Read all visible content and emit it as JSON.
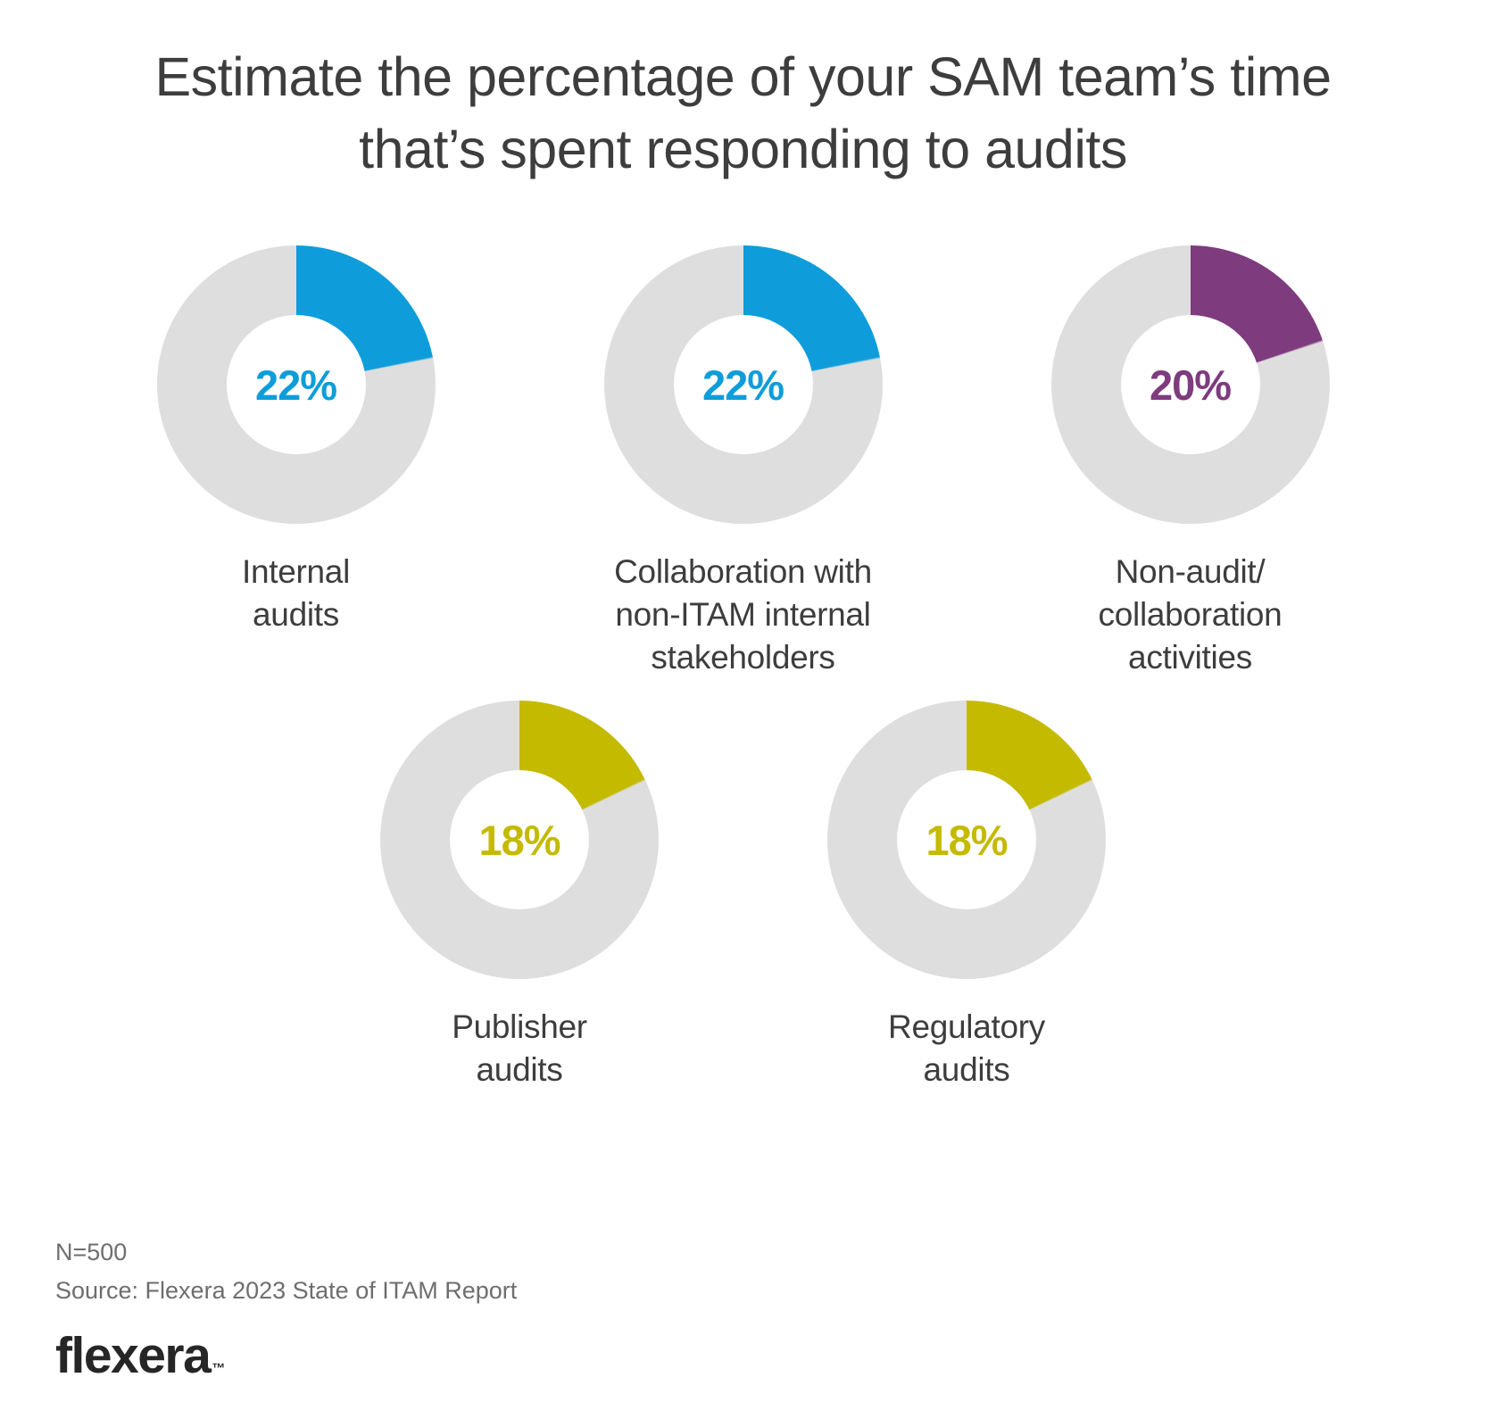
{
  "title": {
    "line1": "Estimate the percentage of your SAM team’s time",
    "line2": "that’s spent responding to audits"
  },
  "chart_data": {
    "type": "pie",
    "subtype": "donut-multiples",
    "title": "Estimate the percentage of your SAM team’s time that’s spent responding to audits",
    "units": "%",
    "start_angle": "12 o'clock, clockwise",
    "remainder_color": "#dedede",
    "donuts": [
      {
        "label": "Internal audits",
        "label_lines": [
          "Internal",
          "audits"
        ],
        "value": 22,
        "display": "22%",
        "color": "#0e9dda",
        "row": 1
      },
      {
        "label": "Collaboration with non-ITAM internal stakeholders",
        "label_lines": [
          "Collaboration with",
          "non-ITAM internal",
          "stakeholders"
        ],
        "value": 22,
        "display": "22%",
        "color": "#0e9dda",
        "row": 1
      },
      {
        "label": "Non-audit/collaboration activities",
        "label_lines": [
          "Non-audit/",
          "collaboration",
          "activities"
        ],
        "value": 20,
        "display": "20%",
        "color": "#7e3b7e",
        "row": 1
      },
      {
        "label": "Publisher audits",
        "label_lines": [
          "Publisher",
          "audits"
        ],
        "value": 18,
        "display": "18%",
        "color": "#c4ba00",
        "row": 2
      },
      {
        "label": "Regulatory audits",
        "label_lines": [
          "Regulatory",
          "audits"
        ],
        "value": 18,
        "display": "18%",
        "color": "#c4ba00",
        "row": 2
      }
    ]
  },
  "footer": {
    "n": "N=500",
    "source": "Source: Flexera 2023 State of ITAM Report",
    "logo_text": "flexera",
    "logo_tm": "™"
  }
}
